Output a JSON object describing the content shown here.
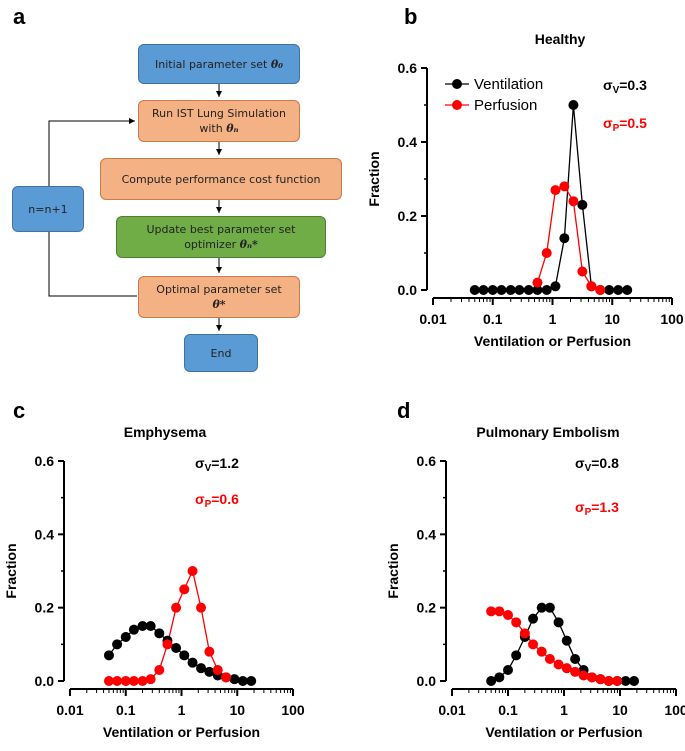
{
  "panels": {
    "a": "a",
    "b": "b",
    "c": "c",
    "d": "d"
  },
  "flowchart": {
    "initial": "Initial parameter set ",
    "initial_math": "θ₀",
    "run_line1": "Run IST Lung Simulation",
    "run_line2": "with ",
    "run_math": "θₙ",
    "cost": "Compute performance cost function",
    "update_line1": "Update best parameter set",
    "update_line2": "optimizer ",
    "update_math": "θₙ*",
    "optimal_line1": "Optimal parameter set",
    "optimal_math": "θ*",
    "end": "End",
    "loop": "n=n+1",
    "colors": {
      "blue": "#5b9bd5",
      "orange": "#f4b183",
      "green": "#70ad47"
    }
  },
  "colors": {
    "ventilation": "#000000",
    "perfusion": "#ff0000"
  },
  "chart_data": [
    {
      "id": "b",
      "type": "line",
      "title": "Healthy",
      "xlabel": "Ventilation or Perfusion",
      "ylabel": "Fraction",
      "xscale": "log",
      "xlim": [
        0.01,
        100
      ],
      "ylim": [
        0,
        0.6
      ],
      "xticks": [
        "0.01",
        "0.1",
        "1",
        "10",
        "100"
      ],
      "yticks": [
        "0.0",
        "0.2",
        "0.4",
        "0.6"
      ],
      "legend": {
        "placement": "top-left",
        "entries": [
          "Ventilation",
          "Perfusion"
        ]
      },
      "sigma_v": "σ",
      "sigma_v_sub": "V",
      "sigma_v_val": "=0.3",
      "sigma_p": "σ",
      "sigma_p_sub": "P",
      "sigma_p_val": "=0.5",
      "series": [
        {
          "name": "Ventilation",
          "color": "#000000",
          "x": [
            0.05,
            0.07,
            0.1,
            0.14,
            0.2,
            0.28,
            0.4,
            0.56,
            0.8,
            1.12,
            1.58,
            2.24,
            3.16,
            4.47,
            6.3,
            8.9,
            12.6,
            17.8
          ],
          "y": [
            0,
            0,
            0,
            0,
            0,
            0,
            0,
            0,
            0,
            0.01,
            0.14,
            0.5,
            0.23,
            0.01,
            0,
            0,
            0,
            0
          ]
        },
        {
          "name": "Perfusion",
          "color": "#ff0000",
          "x": [
            0.56,
            0.8,
            1.12,
            1.58,
            2.24,
            3.16,
            4.47,
            6.3
          ],
          "y": [
            0.02,
            0.1,
            0.27,
            0.28,
            0.24,
            0.05,
            0.01,
            0
          ]
        }
      ]
    },
    {
      "id": "c",
      "type": "line",
      "title": "Emphysema",
      "xlabel": "Ventilation or Perfusion",
      "ylabel": "Fraction",
      "xscale": "log",
      "xlim": [
        0.01,
        100
      ],
      "ylim": [
        0,
        0.6
      ],
      "xticks": [
        "0.01",
        "0.1",
        "1",
        "10",
        "100"
      ],
      "yticks": [
        "0.0",
        "0.2",
        "0.4",
        "0.6"
      ],
      "sigma_v": "σ",
      "sigma_v_sub": "V",
      "sigma_v_val": "=1.2",
      "sigma_p": "σ",
      "sigma_p_sub": "P",
      "sigma_p_val": "=0.6",
      "series": [
        {
          "name": "Ventilation",
          "color": "#000000",
          "x": [
            0.05,
            0.07,
            0.1,
            0.14,
            0.2,
            0.28,
            0.4,
            0.56,
            0.8,
            1.12,
            1.58,
            2.24,
            3.16,
            4.47,
            6.3,
            8.9,
            12.6,
            17.8
          ],
          "y": [
            0.07,
            0.1,
            0.12,
            0.14,
            0.15,
            0.15,
            0.13,
            0.11,
            0.09,
            0.07,
            0.05,
            0.035,
            0.025,
            0.015,
            0.01,
            0.005,
            0,
            0
          ]
        },
        {
          "name": "Perfusion",
          "color": "#ff0000",
          "x": [
            0.05,
            0.07,
            0.1,
            0.14,
            0.2,
            0.28,
            0.4,
            0.56,
            0.8,
            1.12,
            1.58,
            2.24,
            3.16,
            4.47,
            6.3
          ],
          "y": [
            0,
            0,
            0,
            0,
            0,
            0.005,
            0.03,
            0.1,
            0.2,
            0.25,
            0.3,
            0.2,
            0.08,
            0.03,
            0.01
          ]
        }
      ]
    },
    {
      "id": "d",
      "type": "line",
      "title": "Pulmonary Embolism",
      "xlabel": "Ventilation or Perfusion",
      "ylabel": "Fraction",
      "xscale": "log",
      "xlim": [
        0.01,
        100
      ],
      "ylim": [
        0,
        0.6
      ],
      "xticks": [
        "0.01",
        "0.1",
        "1",
        "10",
        "100"
      ],
      "yticks": [
        "0.0",
        "0.2",
        "0.4",
        "0.6"
      ],
      "sigma_v": "σ",
      "sigma_v_sub": "V",
      "sigma_v_val": "=0.8",
      "sigma_p": "σ",
      "sigma_p_sub": "P",
      "sigma_p_val": "=1.3",
      "series": [
        {
          "name": "Ventilation",
          "color": "#000000",
          "x": [
            0.05,
            0.07,
            0.1,
            0.14,
            0.2,
            0.28,
            0.4,
            0.56,
            0.8,
            1.12,
            1.58,
            2.24,
            3.16,
            4.47,
            6.3,
            8.9,
            12.6,
            17.8
          ],
          "y": [
            0,
            0.01,
            0.03,
            0.07,
            0.12,
            0.17,
            0.2,
            0.2,
            0.16,
            0.11,
            0.06,
            0.03,
            0.01,
            0.005,
            0,
            0,
            0,
            0
          ]
        },
        {
          "name": "Perfusion",
          "color": "#ff0000",
          "x": [
            0.05,
            0.07,
            0.1,
            0.14,
            0.2,
            0.28,
            0.4,
            0.56,
            0.8,
            1.12,
            1.58,
            2.24,
            3.16,
            4.47,
            6.3,
            8.9
          ],
          "y": [
            0.19,
            0.19,
            0.18,
            0.16,
            0.13,
            0.1,
            0.08,
            0.06,
            0.045,
            0.035,
            0.025,
            0.015,
            0.01,
            0.005,
            0,
            0
          ]
        }
      ]
    }
  ]
}
